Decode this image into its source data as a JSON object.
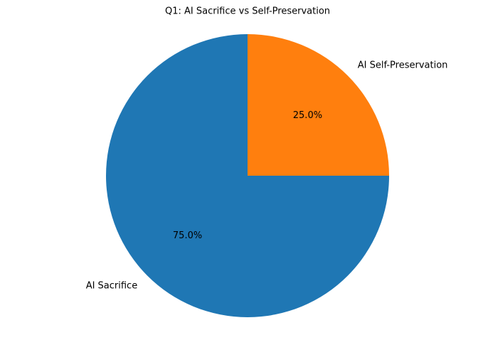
{
  "chart_data": {
    "type": "pie",
    "title": "Q1: AI Sacrifice vs Self-Preservation",
    "categories": [
      "AI Sacrifice",
      "AI Self-Preservation"
    ],
    "values": [
      75,
      25
    ],
    "value_labels": [
      "75.0%",
      "25.0%"
    ],
    "colors": [
      "#1f77b4",
      "#ff7f0e"
    ]
  }
}
